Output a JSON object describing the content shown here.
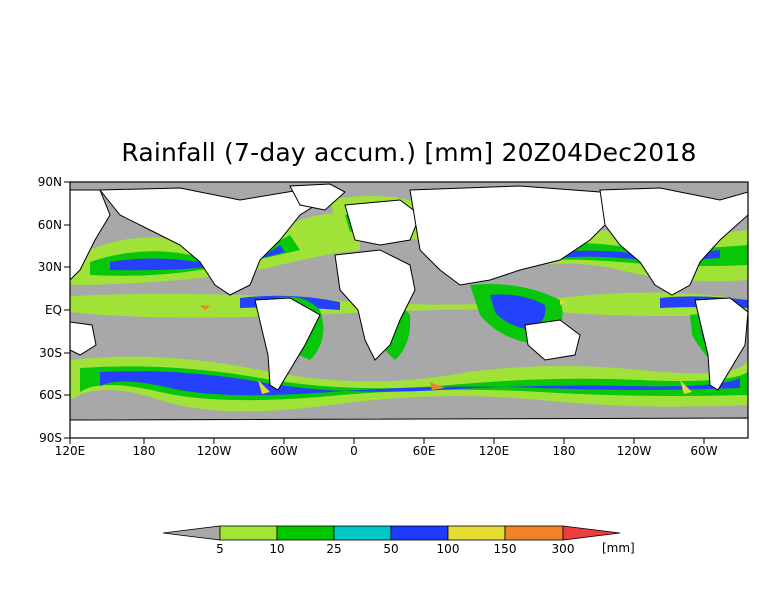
{
  "title": "Rainfall (7-day accum.) [mm] 20Z04Dec2018",
  "lat_labels": [
    "90N",
    "60N",
    "30N",
    "EQ",
    "30S",
    "60S",
    "90S"
  ],
  "lon_labels": [
    "120E",
    "180",
    "120W",
    "60W",
    "0",
    "60E",
    "120E",
    "180",
    "120W",
    "60W"
  ],
  "colorbar": {
    "unit": "[mm]",
    "thresholds": [
      "5",
      "10",
      "25",
      "50",
      "100",
      "150",
      "300"
    ],
    "colors": [
      "#a8a8a8",
      "#a0e632",
      "#00c800",
      "#00c8c8",
      "#1e3cff",
      "#e6dc32",
      "#f08228",
      "#f03c3c"
    ]
  },
  "colors": {
    "ocean_dry": "#a8a8a8",
    "land_dry": "#ffffff",
    "coastline": "#000000"
  }
}
